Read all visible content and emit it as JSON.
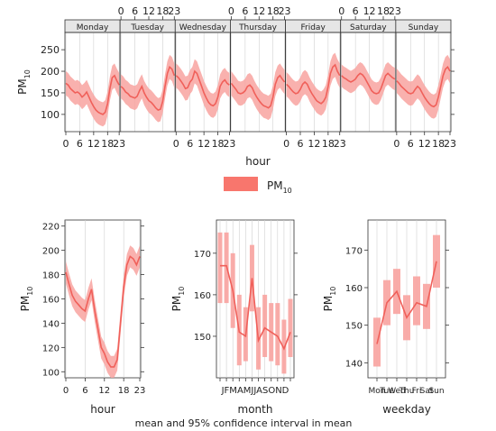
{
  "caption": "mean and 95% confidence interval in mean",
  "legend": {
    "label": "PM",
    "label_sub": "10",
    "color": "#f8766d"
  },
  "colors": {
    "line": "#f0605a",
    "band": "#f8a3a0",
    "strip": "#e6e6e6",
    "grid": "#d0d0d0",
    "axis": "#333333"
  },
  "chart_data": [
    {
      "id": "weekday-hour",
      "type": "line",
      "xlabel": "hour",
      "ylabel": "PM",
      "ylabel_sub": "10",
      "ylim": [
        60,
        290
      ],
      "yticks": [
        100,
        150,
        200,
        250
      ],
      "hour_ticks": [
        0,
        6,
        12,
        18,
        23
      ],
      "panels": [
        {
          "name": "Monday",
          "mean": [
            172,
            168,
            160,
            155,
            150,
            152,
            148,
            140,
            145,
            152,
            140,
            128,
            118,
            110,
            105,
            102,
            100,
            105,
            125,
            160,
            185,
            190,
            178,
            168
          ],
          "ci_halfwidth": 28
        },
        {
          "name": "Tuesday",
          "mean": [
            165,
            160,
            152,
            148,
            142,
            140,
            138,
            142,
            155,
            165,
            150,
            140,
            132,
            128,
            122,
            115,
            110,
            112,
            130,
            165,
            195,
            210,
            205,
            190
          ],
          "ci_halfwidth": 28
        },
        {
          "name": "Wednesday",
          "mean": [
            190,
            185,
            178,
            170,
            160,
            162,
            175,
            182,
            200,
            195,
            180,
            165,
            150,
            138,
            128,
            122,
            120,
            125,
            140,
            165,
            175,
            180,
            172,
            168
          ],
          "ci_halfwidth": 28
        },
        {
          "name": "Thursday",
          "mean": [
            172,
            165,
            158,
            150,
            148,
            150,
            155,
            165,
            168,
            162,
            150,
            140,
            132,
            125,
            120,
            118,
            115,
            120,
            140,
            170,
            185,
            190,
            182,
            175
          ],
          "ci_halfwidth": 28
        },
        {
          "name": "Friday",
          "mean": [
            170,
            165,
            158,
            152,
            148,
            150,
            158,
            170,
            175,
            170,
            158,
            148,
            140,
            132,
            128,
            125,
            130,
            140,
            165,
            195,
            210,
            215,
            200,
            190
          ],
          "ci_halfwidth": 28
        },
        {
          "name": "Saturday",
          "mean": [
            190,
            185,
            182,
            178,
            175,
            178,
            182,
            190,
            195,
            192,
            185,
            175,
            165,
            155,
            150,
            148,
            150,
            160,
            175,
            190,
            195,
            190,
            185,
            182
          ],
          "ci_halfwidth": 26
        },
        {
          "name": "Sunday",
          "mean": [
            178,
            172,
            165,
            160,
            155,
            150,
            148,
            150,
            158,
            165,
            160,
            150,
            140,
            132,
            125,
            120,
            118,
            122,
            140,
            165,
            190,
            205,
            210,
            200
          ],
          "ci_halfwidth": 28
        }
      ]
    },
    {
      "id": "hour",
      "type": "line",
      "xlabel": "hour",
      "ylabel": "PM",
      "ylabel_sub": "10",
      "ylim": [
        95,
        225
      ],
      "yticks": [
        100,
        120,
        140,
        160,
        180,
        200,
        220
      ],
      "xticks": [
        0,
        6,
        12,
        18,
        23
      ],
      "mean": [
        182,
        172,
        163,
        158,
        155,
        152,
        150,
        160,
        168,
        150,
        135,
        120,
        115,
        108,
        104,
        104,
        110,
        140,
        170,
        188,
        195,
        193,
        188,
        195
      ],
      "ci_halfwidth": 9
    },
    {
      "id": "month",
      "type": "line",
      "xlabel": "month",
      "ylabel": "PM",
      "ylabel_sub": "10",
      "ylim": [
        140,
        178
      ],
      "yticks": [
        150,
        160,
        170
      ],
      "categories": [
        "J",
        "F",
        "M",
        "A",
        "M",
        "J",
        "J",
        "A",
        "S",
        "O",
        "N",
        "D"
      ],
      "tick_text": "JFMAMJJASOND",
      "mean": [
        167,
        167,
        161,
        151,
        150,
        164,
        149,
        152,
        151,
        150,
        147,
        151
      ],
      "lower": [
        158,
        158,
        152,
        143,
        144,
        156,
        142,
        145,
        144,
        143,
        141,
        145
      ],
      "upper": [
        175,
        175,
        170,
        160,
        157,
        172,
        157,
        160,
        158,
        158,
        154,
        159
      ]
    },
    {
      "id": "weekday",
      "type": "line",
      "xlabel": "weekday",
      "ylabel": "PM",
      "ylabel_sub": "10",
      "ylim": [
        136,
        178
      ],
      "yticks": [
        140,
        150,
        160,
        170
      ],
      "categories": [
        "Mon",
        "Tue",
        "Wed",
        "Thu",
        "Fri",
        "Sat",
        "Sun"
      ],
      "mean": [
        145,
        156,
        159,
        152,
        156,
        155,
        167
      ],
      "lower": [
        139,
        150,
        153,
        146,
        150,
        149,
        160
      ],
      "upper": [
        152,
        162,
        165,
        158,
        163,
        161,
        174
      ]
    }
  ]
}
